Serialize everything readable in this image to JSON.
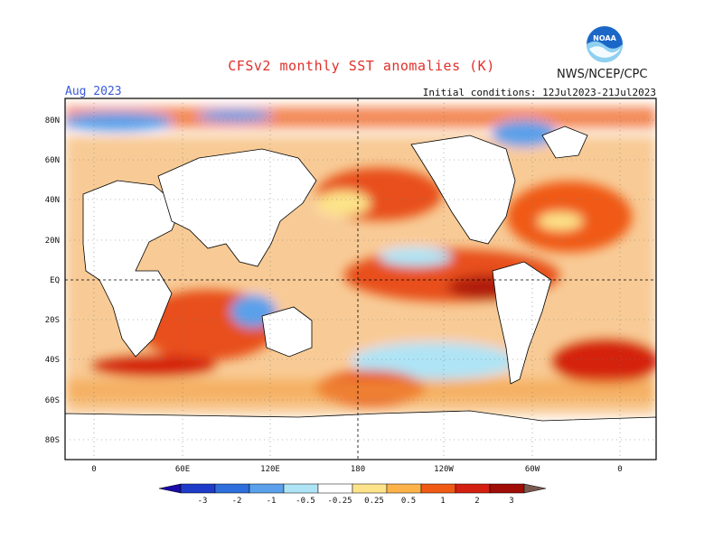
{
  "header": {
    "title": "CFSv2 monthly SST anomalies (K)",
    "org": "NWS/NCEP/CPC",
    "logo_text": "NOAA",
    "valid_month": "Aug 2023",
    "init_conditions": "Initial conditions: 12Jul2023-21Jul2023"
  },
  "map": {
    "lat_labels": [
      "80N",
      "60N",
      "40N",
      "20N",
      "EQ",
      "20S",
      "40S",
      "60S",
      "80S"
    ],
    "lon_labels": [
      "0",
      "60E",
      "120E",
      "180",
      "120W",
      "60W",
      "0"
    ]
  },
  "colorbar": {
    "tick_labels": [
      "-3",
      "-2",
      "-1",
      "-0.5",
      "-0.25",
      "0.25",
      "0.5",
      "1",
      "2",
      "3"
    ],
    "colors": [
      "#1a0aa8",
      "#1e3cc8",
      "#2f6fdc",
      "#5aa0ea",
      "#aee4f6",
      "#ffffff",
      "#fde38a",
      "#fdb24a",
      "#f05a14",
      "#d42010",
      "#a00c06",
      "#7a5a4e"
    ]
  }
}
